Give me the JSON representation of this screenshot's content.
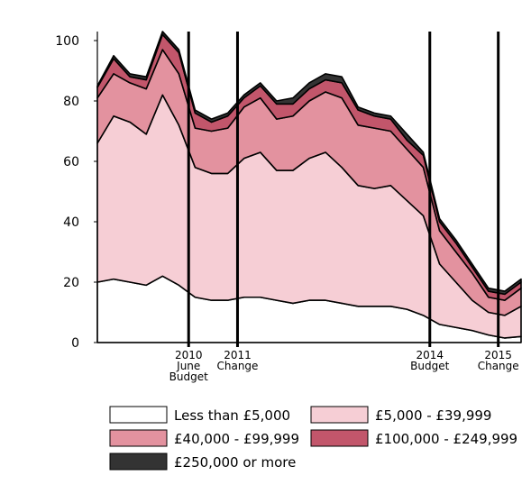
{
  "chart_data": {
    "type": "stacked-area",
    "x": [
      2009,
      2009.25,
      2009.5,
      2009.75,
      2010,
      2010.25,
      2010.5,
      2010.75,
      2011,
      2011.25,
      2011.5,
      2011.75,
      2012,
      2012.25,
      2012.5,
      2012.75,
      2013,
      2013.25,
      2013.5,
      2013.75,
      2014,
      2014.25,
      2014.5,
      2014.75,
      2015,
      2015.25,
      2015.5
    ],
    "xlim": [
      2009,
      2015.5
    ],
    "xticks": [
      {
        "value": 2010.4,
        "label": "2010\nJune\nBudget"
      },
      {
        "value": 2011.15,
        "label": "2011\nChange"
      },
      {
        "value": 2014.1,
        "label": "2014\nBudget"
      },
      {
        "value": 2015.15,
        "label": "2015\nChange"
      }
    ],
    "ylim": [
      0,
      100
    ],
    "yticks": [
      0,
      20,
      40,
      60,
      80,
      100
    ],
    "series": [
      {
        "name": "Less than £5,000",
        "color": "#ffffff",
        "values": [
          20,
          21,
          20,
          19,
          22,
          19,
          15,
          14,
          14,
          15,
          15,
          14,
          13,
          14,
          14,
          13,
          12,
          12,
          12,
          11,
          9,
          6,
          5,
          4,
          2.5,
          1.5,
          2
        ]
      },
      {
        "name": "£5,000 - £39,999",
        "color": "#f6ced5",
        "values": [
          46,
          54,
          53,
          50,
          60,
          53,
          43,
          42,
          42,
          46,
          48,
          43,
          44,
          47,
          49,
          45,
          40,
          39,
          40,
          36,
          33,
          20,
          15,
          10,
          7.5,
          7.5,
          10
        ]
      },
      {
        "name": "£40,000 - £99,999",
        "color": "#e3929f",
        "values": [
          15,
          14,
          13,
          15,
          15,
          17,
          13,
          14,
          15,
          17,
          18,
          17,
          18,
          19,
          20,
          23,
          20,
          20,
          18,
          17,
          16,
          11,
          10,
          9,
          5,
          5,
          6
        ]
      },
      {
        "name": "£100,000 - £249,999",
        "color": "#c2566b",
        "values": [
          3.5,
          5,
          2,
          3,
          5,
          7,
          5,
          3,
          4,
          3,
          4,
          5,
          4,
          4,
          4,
          5,
          5,
          4,
          4,
          3,
          4,
          3,
          3,
          2,
          2,
          2,
          2
        ]
      },
      {
        "name": "£250,000 or more",
        "color": "#333333",
        "values": [
          0.5,
          1,
          1,
          1,
          1,
          1,
          1,
          1,
          1,
          1,
          1,
          1,
          2,
          2,
          2,
          2,
          1,
          1,
          1,
          2,
          1,
          1,
          1,
          1,
          1,
          1,
          1
        ]
      }
    ]
  }
}
